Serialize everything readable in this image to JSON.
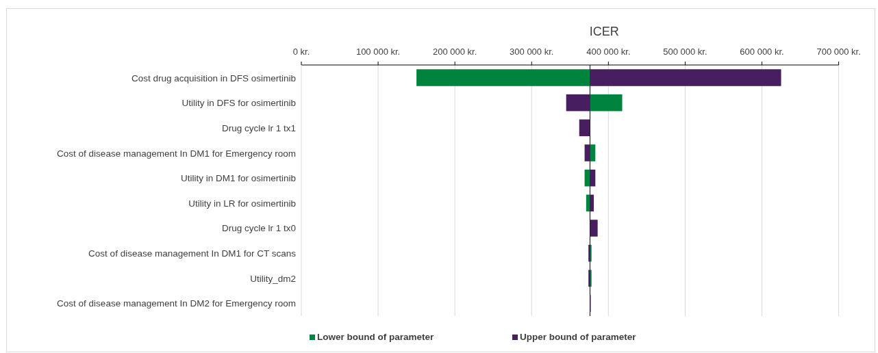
{
  "chart_data": {
    "type": "bar",
    "orientation": "horizontal",
    "title": "ICER",
    "categories": [
      "Cost drug acquisition in DFS osimertinib",
      "Utility  in DFS for osimertinib",
      "Drug cycle lr 1 tx1",
      "Cost of disease management In DM1 for  Emergency room",
      "Utility  in DM1 for osimertinib",
      "Utility  in LR for osimertinib",
      "Drug cycle lr 1 tx0",
      "Cost of disease management In DM1 for  CT scans",
      "Utility_dm2",
      "Cost of disease management In DM2 for  Emergency room"
    ],
    "series": [
      {
        "name": "Lower bound of parameter",
        "color": "#00843d",
        "base": [
          150000,
          376000,
          null,
          376000,
          369000,
          371000,
          null,
          376000,
          376000,
          null
        ],
        "values": [
          226000,
          42000,
          null,
          7000,
          7000,
          5000,
          null,
          2000,
          2000,
          null
        ]
      },
      {
        "name": "Upper bound of parameter",
        "color": "#471e5f",
        "base": [
          376000,
          345000,
          362000,
          369000,
          376000,
          376000,
          376000,
          374000,
          374000,
          376000
        ],
        "values": [
          249000,
          31000,
          14000,
          7000,
          7000,
          5000,
          10000,
          2000,
          2000,
          1000
        ]
      }
    ],
    "xlim": [
      0,
      700000
    ],
    "xticks": [
      {
        "value": 0,
        "label": "0 kr."
      },
      {
        "value": 100000,
        "label": "100 000 kr."
      },
      {
        "value": 200000,
        "label": "200 000 kr."
      },
      {
        "value": 300000,
        "label": "300 000 kr."
      },
      {
        "value": 400000,
        "label": "400 000 kr."
      },
      {
        "value": 500000,
        "label": "500 000 kr."
      },
      {
        "value": 600000,
        "label": "600 000 kr."
      },
      {
        "value": 700000,
        "label": "700 000 kr."
      }
    ],
    "ref_lines": [
      {
        "axis": "x",
        "value": 376000,
        "color": "#000000"
      }
    ],
    "grid": "x",
    "legend": "bottom"
  }
}
